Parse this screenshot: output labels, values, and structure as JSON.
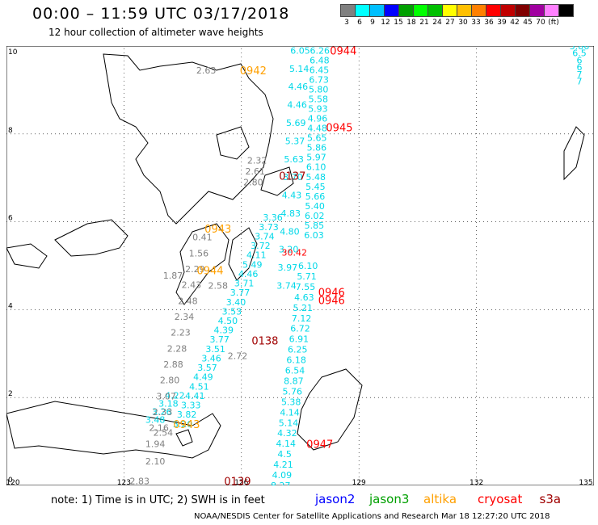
{
  "title": "00:00 – 11:59 UTC 03/17/2018",
  "subtitle": "12 hour collection of altimeter wave heights",
  "scale": {
    "colors": [
      "#808080",
      "#00ffff",
      "#00c0ff",
      "#0000ff",
      "#00a000",
      "#00ff00",
      "#00c000",
      "#ffff00",
      "#ffc000",
      "#ff8000",
      "#ff0000",
      "#c00000",
      "#800000",
      "#a000a0",
      "#ff80ff",
      "#000000"
    ],
    "labels": [
      "3",
      "6",
      "9",
      "12",
      "15",
      "18",
      "21",
      "24",
      "27",
      "30",
      "33",
      "36",
      "39",
      "42",
      "45",
      "70",
      "(ft)"
    ]
  },
  "axes": {
    "x_ticks": [
      "120",
      "123",
      "126",
      "129",
      "132",
      "135"
    ],
    "y_ticks": [
      "0",
      "2",
      "4",
      "6",
      "8",
      "10"
    ]
  },
  "satellites": [
    {
      "name": "jason2",
      "color": "#0000ff"
    },
    {
      "name": "jason3",
      "color": "#00a000"
    },
    {
      "name": "altika",
      "color": "#ffa000"
    },
    {
      "name": "cryosat",
      "color": "#ff0000"
    },
    {
      "name": "s3a",
      "color": "#a00000"
    }
  ],
  "time_labels": [
    {
      "t": "0944",
      "lon": 128.6,
      "lat": 9.9,
      "color": "#ff0000"
    },
    {
      "t": "0942",
      "lon": 126.3,
      "lat": 9.45,
      "color": "#ffa000"
    },
    {
      "t": "0945",
      "lon": 128.5,
      "lat": 8.15,
      "color": "#ff0000"
    },
    {
      "t": "0137",
      "lon": 127.3,
      "lat": 7.05,
      "color": "#a00000"
    },
    {
      "t": "0943",
      "lon": 125.4,
      "lat": 5.85,
      "color": "#ffa000"
    },
    {
      "t": "0944",
      "lon": 125.2,
      "lat": 4.9,
      "color": "#ffa000"
    },
    {
      "t": "0946",
      "lon": 128.3,
      "lat": 4.4,
      "color": "#ff0000"
    },
    {
      "t": "0946",
      "lon": 128.3,
      "lat": 4.22,
      "color": "#ff0000"
    },
    {
      "t": "0138",
      "lon": 126.6,
      "lat": 3.3,
      "color": "#a00000"
    },
    {
      "t": "0943",
      "lon": 124.6,
      "lat": 1.4,
      "color": "#ffa000"
    },
    {
      "t": "0947",
      "lon": 128.0,
      "lat": 0.95,
      "color": "#ff0000"
    },
    {
      "t": "0139",
      "lon": 125.9,
      "lat": 0.1,
      "color": "#a00000"
    }
  ],
  "tracks": [
    {
      "color": "#00d8e8",
      "lon0": 127.5,
      "lat0": 9.9,
      "lon1": 127.15,
      "lat1": 4.55,
      "vals": [
        "6.05",
        "5.14",
        "4.46",
        "4.46",
        "5.69",
        "5.37",
        "5.63",
        "3.70",
        "4.43",
        "4.83",
        "4.80",
        "3.20",
        "3.97",
        "3.74"
      ]
    },
    {
      "color": "#00d8e8",
      "lon0": 128.0,
      "lat0": 9.9,
      "lat1": 5.7,
      "lon1": 127.85,
      "vals": [
        "6.26",
        "6.48",
        "6.45",
        "6.73",
        "5.80",
        "5.58",
        "5.93",
        "4.96",
        "4.48",
        "5.65",
        "5.86",
        "5.97",
        "6.10",
        "5.48",
        "5.45",
        "5.66",
        "5.40",
        "6.02",
        "5.85",
        "6.03"
      ]
    },
    {
      "color": "#00d8e8",
      "lon0": 127.7,
      "lat0": 5.0,
      "lon1": 127.0,
      "lat1": 0.0,
      "vals": [
        "6.10",
        "5.71",
        "7.55",
        "4.63",
        "5.21",
        "7.12",
        "6.72",
        "6.91",
        "6.25",
        "6.18",
        "6.54",
        "8.87",
        "5.76",
        "5.38",
        "4.14",
        "5.14",
        "4.32",
        "4.14",
        "4.5",
        "4.21",
        "4.09",
        "8.27"
      ]
    },
    {
      "color": "#00d8e8",
      "lon0": 126.8,
      "lat0": 6.1,
      "lon1": 124.5,
      "lat1": 1.4,
      "vals": [
        "3.36",
        "3.73",
        "3.74",
        "3.72",
        "4.11",
        "5.49",
        "4.46",
        "3.71",
        "3.77",
        "3.40",
        "3.53",
        "4.50",
        "4.39",
        "3.77",
        "3.51",
        "3.46",
        "3.57",
        "4.49",
        "4.51",
        "4.41",
        "3.33",
        "3.82",
        "5.20"
      ]
    },
    {
      "color": "#00d8e8",
      "lon0": 124.3,
      "lat0": 2.05,
      "lon1": 123.8,
      "lat1": 1.5,
      "vals": [
        "4.22",
        "3.18",
        "3.26",
        "3.48"
      ]
    },
    {
      "color": "#808080",
      "lon0": 126.4,
      "lat0": 7.4,
      "lon1": 126.3,
      "lat1": 6.9,
      "vals": [
        "2.32",
        "2.61",
        "2.80"
      ]
    },
    {
      "color": "#808080",
      "lon0": 125.0,
      "lat0": 5.65,
      "lon1": 123.8,
      "lat1": 0.95,
      "vals": [
        "0.41",
        "1.56",
        "2.29",
        "2.43",
        "2.48",
        "2.34",
        "2.23",
        "2.28",
        "2.88",
        "2.80",
        "3.07",
        "2.33",
        "2.16",
        "1.94"
      ]
    },
    {
      "color": "#808080",
      "lon0": 124.0,
      "lat0": 1.2,
      "lon1": 123.8,
      "lat1": 0.55,
      "vals": [
        "2.54",
        "2.10"
      ]
    },
    {
      "color": "#808080",
      "lon0": 125.4,
      "lat0": 4.55,
      "lon1": 125.9,
      "lat1": 2.95,
      "vals": [
        "2.58",
        "2.72"
      ]
    },
    {
      "color": "#808080",
      "lon0": 125.1,
      "lat0": 9.45,
      "lon1": 123.4,
      "lat1": 0.1,
      "vals": [
        "2.63",
        "1.87",
        "2.83"
      ]
    },
    {
      "color": "#ff0000",
      "lon0": 127.35,
      "lat0": 5.3,
      "lon1": 127.35,
      "lat1": 5.3,
      "vals": [
        "30.42"
      ]
    },
    {
      "color": "#00d8e8",
      "lon0": 135.0,
      "lat0": 10.0,
      "lon1": 135.0,
      "lat1": 9.2,
      "vals": [
        "5.86",
        "6.5",
        "6",
        "6",
        "7",
        "7"
      ]
    }
  ],
  "note": "note: 1) Time is in UTC; 2) SWH is in feet",
  "credit": "NOAA/NESDIS Center for Satellite Applications and Research   Mar 18 12:27:20 UTC 2018"
}
